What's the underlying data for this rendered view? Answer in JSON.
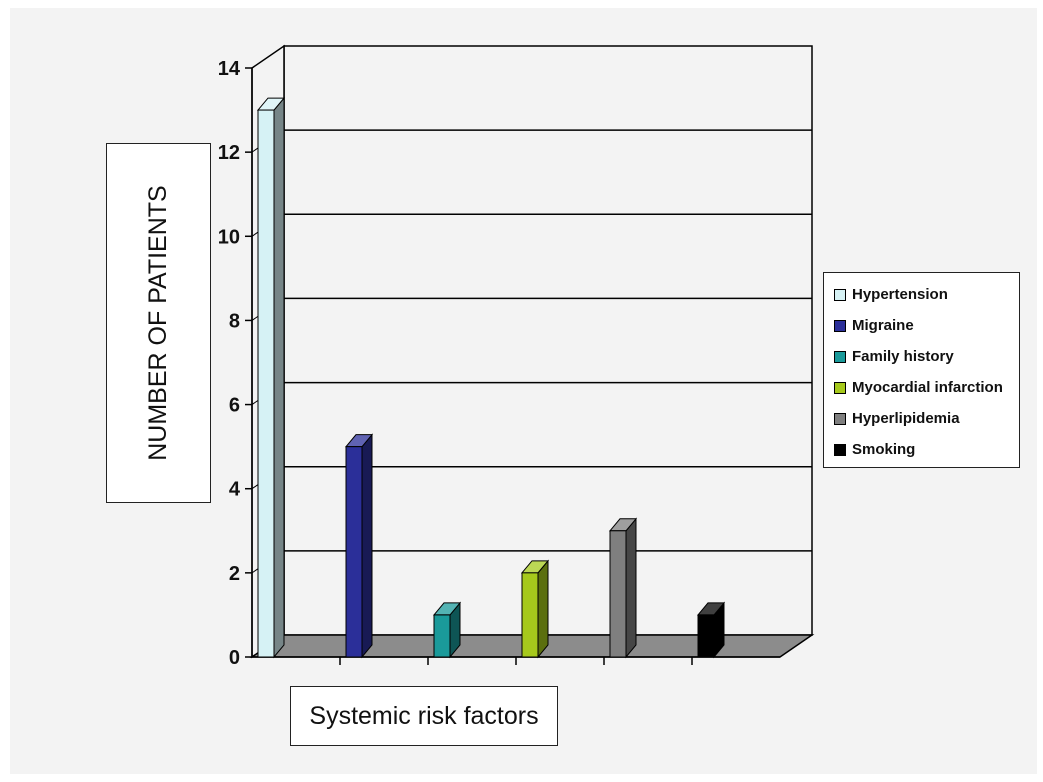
{
  "chart_data": {
    "type": "bar",
    "title": "",
    "xlabel": "Systemic risk factors",
    "ylabel": "NUMBER OF PATIENTS",
    "ylim": [
      0,
      14
    ],
    "yticks": [
      "0",
      "2",
      "4",
      "6",
      "8",
      "10",
      "12",
      "14"
    ],
    "grid": true,
    "legend_position": "right",
    "categories": [
      "Hypertension",
      "Migraine",
      "Family history",
      "Myocardial  infarction",
      "Hyperlipidemia",
      "Smoking"
    ],
    "values": [
      13,
      5,
      1,
      2,
      3,
      1
    ],
    "colors": [
      "#d6f2f5",
      "#2b2f99",
      "#1a9a9a",
      "#a6c91c",
      "#7f7f7f",
      "#000000"
    ]
  }
}
